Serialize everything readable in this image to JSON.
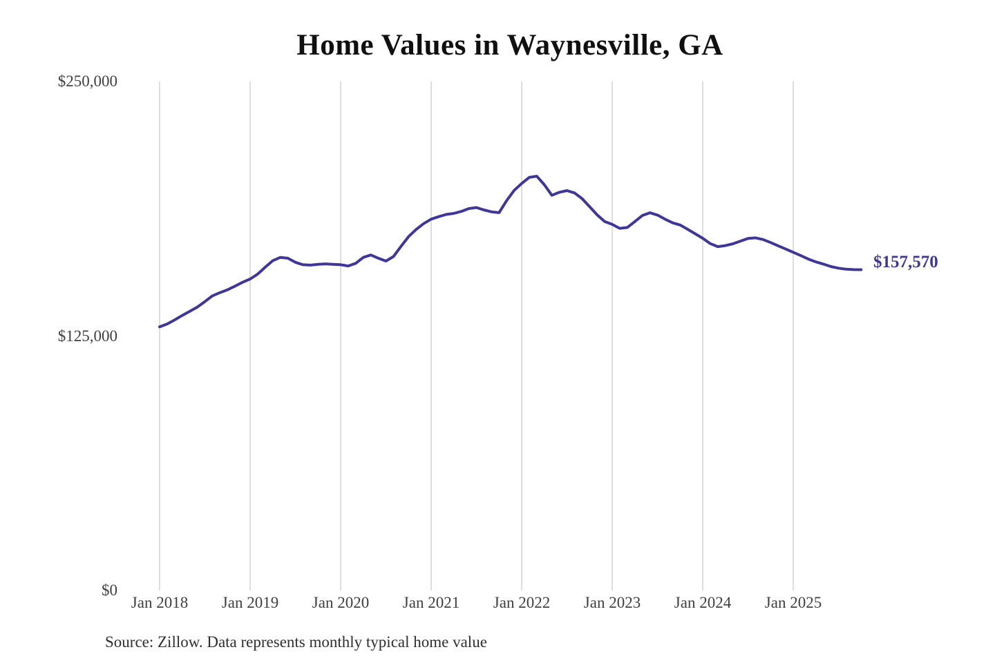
{
  "page": {
    "title": "Home Values in Waynesville, GA",
    "source_note": "Source: Zillow. Data represents monthly typical home value",
    "end_value_label": "$157,570"
  },
  "chart_data": {
    "type": "line",
    "title": "Home Values in Waynesville, GA",
    "xlabel": "",
    "ylabel": "",
    "ylim": [
      0,
      250000
    ],
    "grid": "vertical-only",
    "legend": "none",
    "line_end_annotation": "$157,570",
    "source": "Source: Zillow. Data represents monthly typical home value",
    "colors": {
      "line": "#3f3798",
      "end_label": "#3f3798",
      "gridline": "#c9c9c9",
      "title": "#101010",
      "axis_text": "#3f3f3f",
      "source_text": "#2e2e2e",
      "background": "#ffffff"
    },
    "y_axis": {
      "ticks": [
        {
          "label": "$250,000",
          "value": 250000
        },
        {
          "label": "$125,000",
          "value": 125000
        },
        {
          "label": "$0",
          "value": 0
        }
      ]
    },
    "x_axis": {
      "ticks": [
        "Jan 2018",
        "Jan 2019",
        "Jan 2020",
        "Jan 2021",
        "Jan 2022",
        "Jan 2023",
        "Jan 2024",
        "Jan 2025"
      ],
      "tick_interval_months": 12
    },
    "series": [
      {
        "name": "Typical home value",
        "frequency": "monthly",
        "months": [
          "2018-01",
          "2018-02",
          "2018-03",
          "2018-04",
          "2018-05",
          "2018-06",
          "2018-07",
          "2018-08",
          "2018-09",
          "2018-10",
          "2018-11",
          "2018-12",
          "2019-01",
          "2019-02",
          "2019-03",
          "2019-04",
          "2019-05",
          "2019-06",
          "2019-07",
          "2019-08",
          "2019-09",
          "2019-10",
          "2019-11",
          "2019-12",
          "2020-01",
          "2020-02",
          "2020-03",
          "2020-04",
          "2020-05",
          "2020-06",
          "2020-07",
          "2020-08",
          "2020-09",
          "2020-10",
          "2020-11",
          "2020-12",
          "2021-01",
          "2021-02",
          "2021-03",
          "2021-04",
          "2021-05",
          "2021-06",
          "2021-07",
          "2021-08",
          "2021-09",
          "2021-10",
          "2021-11",
          "2021-12",
          "2022-01",
          "2022-02",
          "2022-03",
          "2022-04",
          "2022-05",
          "2022-06",
          "2022-07",
          "2022-08",
          "2022-09",
          "2022-10",
          "2022-11",
          "2022-12",
          "2023-01",
          "2023-02",
          "2023-03",
          "2023-04",
          "2023-05",
          "2023-06",
          "2023-07",
          "2023-08",
          "2023-09",
          "2023-10",
          "2023-11",
          "2023-12",
          "2024-01",
          "2024-02",
          "2024-03",
          "2024-04",
          "2024-05",
          "2024-06",
          "2024-07",
          "2024-08",
          "2024-09",
          "2024-10",
          "2024-11",
          "2024-12",
          "2025-01",
          "2025-02",
          "2025-03",
          "2025-04",
          "2025-05",
          "2025-06",
          "2025-07",
          "2025-08",
          "2025-09",
          "2025-10"
        ],
        "values": [
          129500,
          130900,
          132900,
          135100,
          137100,
          139200,
          141900,
          144700,
          146300,
          147700,
          149500,
          151400,
          153000,
          155400,
          158800,
          162000,
          163600,
          163200,
          161200,
          160000,
          159800,
          160200,
          160400,
          160200,
          160000,
          159400,
          160700,
          163600,
          164800,
          163200,
          161800,
          164000,
          169000,
          173800,
          177300,
          180200,
          182400,
          183600,
          184700,
          185200,
          186200,
          187600,
          188100,
          186900,
          186000,
          185600,
          191500,
          196500,
          199900,
          202900,
          203500,
          199300,
          194100,
          195600,
          196400,
          195300,
          192500,
          188500,
          184500,
          181200,
          179800,
          177900,
          178300,
          181200,
          184200,
          185500,
          184400,
          182400,
          180600,
          179500,
          177400,
          175200,
          173000,
          170400,
          168900,
          169400,
          170300,
          171600,
          172900,
          173200,
          172400,
          170900,
          169300,
          167700,
          166100,
          164500,
          162800,
          161400,
          160300,
          159100,
          158300,
          157800,
          157600,
          157570
        ]
      }
    ]
  }
}
